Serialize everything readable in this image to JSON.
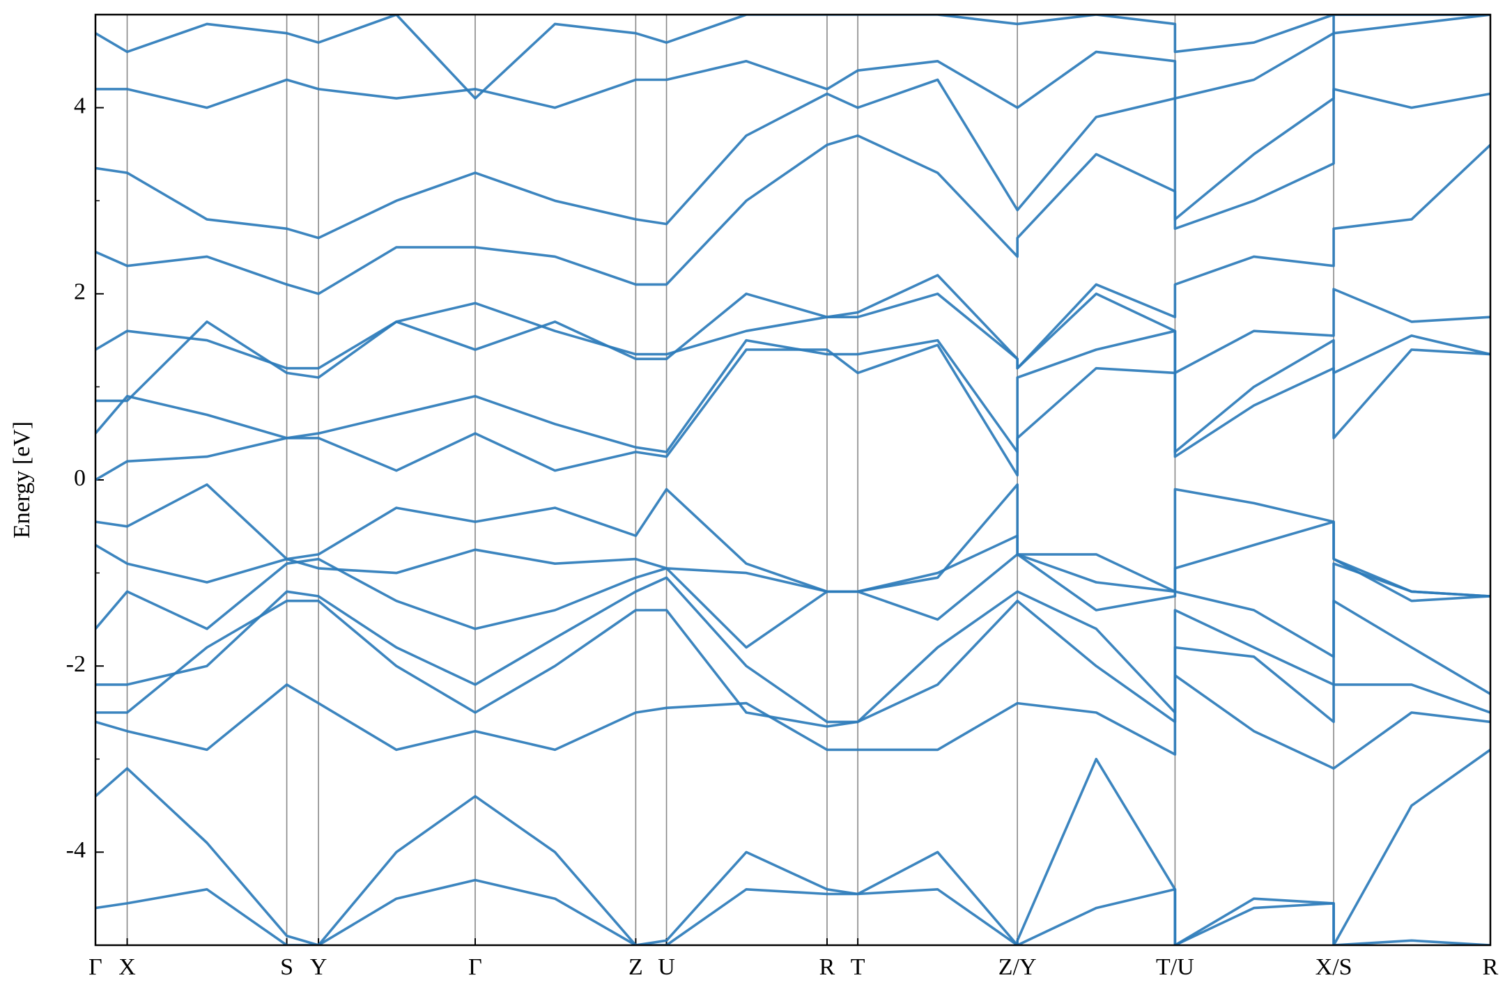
{
  "chart_data": {
    "type": "line",
    "y_label": "Energy [eV]",
    "color": "#2b7bba",
    "xlim": [
      0,
      1451
    ],
    "ylim": [
      -5,
      5
    ],
    "yticks": [
      -4,
      -2,
      0,
      2,
      4
    ],
    "yminorticks": [
      -5,
      -3,
      -1,
      1,
      3,
      5
    ],
    "xticks": [
      {
        "value": 0,
        "label": "Γ"
      },
      {
        "value": 33,
        "label": "X"
      },
      {
        "value": 199,
        "label": "S"
      },
      {
        "value": 232,
        "label": "Y"
      },
      {
        "value": 395,
        "label": "Γ"
      },
      {
        "value": 562,
        "label": "Z"
      },
      {
        "value": 594,
        "label": "U"
      },
      {
        "value": 761,
        "label": "R"
      },
      {
        "value": 793,
        "label": "T"
      },
      {
        "value": 959,
        "label": "Z/Y"
      },
      {
        "value": 1123,
        "label": "T/U"
      },
      {
        "value": 1288,
        "label": "X/S"
      },
      {
        "value": 1451,
        "label": "R"
      }
    ],
    "grid": true,
    "x": [
      0,
      33,
      116,
      199,
      232,
      313,
      395,
      478,
      562,
      594,
      677,
      761,
      793,
      876,
      959,
      959,
      1041,
      1123,
      1123,
      1205,
      1288,
      1288,
      1369,
      1451
    ],
    "series": [
      {
        "values": [
          -4.6,
          -4.55,
          -4.4,
          -5,
          -5,
          -4.5,
          -4.3,
          -4.5,
          -5,
          -5,
          -4.4,
          -4.45,
          -4.45,
          -4.4,
          -5,
          -5,
          -4.6,
          -4.4,
          -5,
          -4.6,
          -4.55,
          -5,
          -4.95,
          -5
        ]
      },
      {
        "values": [
          -3.4,
          -3.1,
          -3.9,
          -4.9,
          -5,
          -4.0,
          -3.4,
          -4.0,
          -5,
          -4.95,
          -4.0,
          -4.4,
          -4.45,
          -4.0,
          -5,
          -4.95,
          -3.0,
          -4.4,
          -5,
          -4.5,
          -4.55,
          -5,
          -3.5,
          -2.9
        ]
      },
      {
        "values": [
          -2.6,
          -2.7,
          -2.9,
          -2.2,
          -2.4,
          -2.9,
          -2.7,
          -2.9,
          -2.5,
          -2.45,
          -2.4,
          -2.9,
          -2.9,
          -2.9,
          -2.4,
          -2.4,
          -2.5,
          -2.95,
          -2.1,
          -2.7,
          -3.1,
          -3.1,
          -2.5,
          -2.6
        ]
      },
      {
        "values": [
          -2.5,
          -2.5,
          -1.8,
          -1.3,
          -1.3,
          -2.0,
          -2.5,
          -2.0,
          -1.4,
          -1.4,
          -2.5,
          -2.65,
          -2.6,
          -2.2,
          -1.3,
          -1.3,
          -2.0,
          -2.6,
          -1.8,
          -1.9,
          -2.6,
          -2.2,
          -2.2,
          -2.5
        ]
      },
      {
        "values": [
          -2.2,
          -2.2,
          -2.0,
          -1.2,
          -1.25,
          -1.8,
          -2.2,
          -1.7,
          -1.2,
          -1.05,
          -2.0,
          -2.6,
          -2.6,
          -1.8,
          -1.2,
          -1.2,
          -1.6,
          -2.5,
          -1.4,
          -1.8,
          -2.2,
          -1.3,
          -1.8,
          -2.3
        ]
      },
      {
        "values": [
          -1.6,
          -1.2,
          -1.6,
          -0.9,
          -0.85,
          -1.3,
          -1.6,
          -1.4,
          -1.05,
          -0.95,
          -1.8,
          -1.2,
          -1.2,
          -1.5,
          -0.8,
          -0.8,
          -1.4,
          -1.25,
          -1.2,
          -1.4,
          -1.9,
          -0.9,
          -1.2,
          -1.25
        ]
      },
      {
        "values": [
          -0.7,
          -0.9,
          -1.1,
          -0.85,
          -0.95,
          -1.0,
          -0.75,
          -0.9,
          -0.85,
          -0.95,
          -1.0,
          -1.2,
          -1.2,
          -1.05,
          -0.05,
          -0.8,
          -1.1,
          -1.2,
          -0.95,
          -0.7,
          -0.45,
          -0.85,
          -1.3,
          -1.25
        ]
      },
      {
        "values": [
          -0.45,
          -0.5,
          -0.05,
          -0.85,
          -0.8,
          -0.3,
          -0.45,
          -0.3,
          -0.6,
          -0.1,
          -0.9,
          -1.2,
          -1.2,
          -1.0,
          -0.6,
          -0.8,
          -0.8,
          -1.2,
          -0.1,
          -0.25,
          -0.45,
          -0.85,
          -1.2,
          -1.25
        ]
      },
      {
        "values": [
          0,
          0.2,
          0.25,
          0.45,
          0.45,
          0.1,
          0.5,
          0.1,
          0.3,
          0.25,
          1.4,
          1.4,
          1.15,
          1.45,
          0.05,
          0.45,
          1.2,
          1.15,
          0.25,
          0.8,
          1.2,
          0.45,
          1.4,
          1.35
        ]
      },
      {
        "values": [
          0.5,
          0.9,
          0.7,
          0.45,
          0.5,
          0.7,
          0.9,
          0.6,
          0.35,
          0.3,
          1.5,
          1.35,
          1.35,
          1.5,
          0.3,
          1.1,
          1.4,
          1.6,
          0.3,
          1.0,
          1.5,
          1.15,
          1.55,
          1.35
        ]
      },
      {
        "values": [
          0.85,
          0.85,
          1.7,
          1.15,
          1.1,
          1.7,
          1.4,
          1.7,
          1.3,
          1.3,
          2.0,
          1.75,
          1.75,
          2.0,
          1.3,
          1.2,
          2.0,
          1.6,
          1.15,
          1.6,
          1.55,
          2.05,
          1.7,
          1.75
        ]
      },
      {
        "values": [
          1.4,
          1.6,
          1.5,
          1.2,
          1.2,
          1.7,
          1.9,
          1.6,
          1.35,
          1.35,
          1.6,
          1.75,
          1.8,
          2.2,
          1.3,
          1.2,
          2.1,
          1.75,
          2.1,
          2.4,
          2.3,
          2.7,
          2.8,
          3.6
        ]
      },
      {
        "values": [
          2.45,
          2.3,
          2.4,
          2.1,
          2.0,
          2.5,
          2.5,
          2.4,
          2.1,
          2.1,
          3.0,
          3.6,
          3.7,
          3.3,
          2.4,
          2.6,
          3.5,
          3.1,
          2.7,
          3.0,
          3.4,
          4.2,
          4.0,
          4.15
        ]
      },
      {
        "values": [
          3.35,
          3.3,
          2.8,
          2.7,
          2.6,
          3.0,
          3.3,
          3.0,
          2.8,
          2.75,
          3.7,
          4.15,
          4.0,
          4.3,
          2.9,
          2.9,
          3.9,
          4.1,
          2.8,
          3.5,
          4.1,
          4.8,
          4.9,
          5.0
        ]
      },
      {
        "values": [
          4.2,
          4.2,
          4.0,
          4.3,
          4.2,
          4.1,
          4.2,
          4.0,
          4.3,
          4.3,
          4.5,
          4.2,
          4.4,
          4.5,
          4.0,
          4.0,
          4.6,
          4.5,
          4.1,
          4.3,
          4.8,
          5.0,
          5.0,
          5.0
        ]
      },
      {
        "values": [
          4.8,
          4.6,
          4.9,
          4.8,
          4.7,
          5.0,
          4.1,
          4.9,
          4.8,
          4.7,
          5.0,
          5.0,
          5.0,
          5.0,
          4.9,
          4.9,
          5.0,
          4.9,
          4.6,
          4.7,
          5.0,
          5.0,
          5.0,
          5.0
        ]
      }
    ]
  }
}
